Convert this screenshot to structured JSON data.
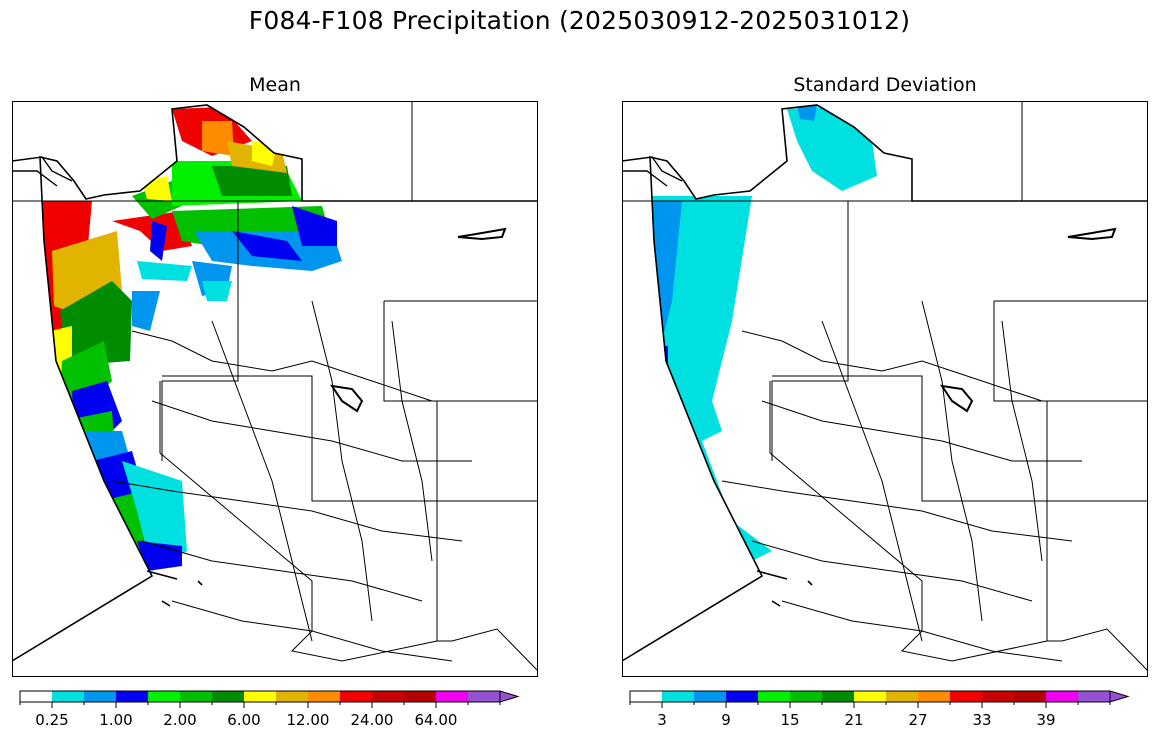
{
  "title": "F084-F108 Precipitation (2025030912-2025031012)",
  "panels": [
    {
      "id": "mean",
      "title": "Mean",
      "colorbar": {
        "colors": [
          "#ffffff",
          "#00e0e0",
          "#0096f0",
          "#0000f0",
          "#00f000",
          "#00c000",
          "#008c00",
          "#ffff00",
          "#e0b400",
          "#ff8c00",
          "#f00000",
          "#c80000",
          "#b40000",
          "#f000f0",
          "#9650d2"
        ],
        "tick_labels": [
          "0.25",
          "1.00",
          "2.00",
          "6.00",
          "12.00",
          "24.00",
          "64.00"
        ]
      }
    },
    {
      "id": "sd",
      "title": "Standard Deviation",
      "colorbar": {
        "colors": [
          "#ffffff",
          "#00e0e0",
          "#0096f0",
          "#0000f0",
          "#00f000",
          "#00c000",
          "#008c00",
          "#ffff00",
          "#e0b400",
          "#ff8c00",
          "#f00000",
          "#c80000",
          "#b40000",
          "#f000f0",
          "#9650d2"
        ],
        "tick_labels": [
          "3",
          "9",
          "15",
          "21",
          "27",
          "33",
          "39"
        ]
      }
    }
  ]
}
